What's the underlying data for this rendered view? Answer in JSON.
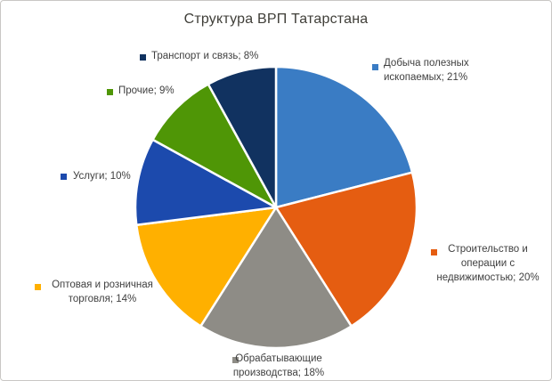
{
  "chart_data": {
    "type": "pie",
    "title": "Структура ВРП Татарстана",
    "legend_position": "none",
    "data_labels": "outside, legend key + category name + percent",
    "start_angle_deg": 0,
    "direction": "clockwise",
    "background": "#ffffff",
    "separator_color": "#ffffff",
    "slices": [
      {
        "label": "Добыча полезных ископаемых",
        "value": 21,
        "unit": "%",
        "color": "#3a7cc4",
        "display": "Добыча полезных\nископаемых; 21%"
      },
      {
        "label": "Строительство и операции с недвижимостью",
        "value": 20,
        "unit": "%",
        "color": "#e55d11",
        "display": "Строительство и\nоперации с\nнедвижимостью; 20%"
      },
      {
        "label": "Обрабатывающие производства",
        "value": 18,
        "unit": "%",
        "color": "#8e8c86",
        "display": "Обрабатывающие\nпроизводства; 18%"
      },
      {
        "label": "Оптовая и розничная торговля",
        "value": 14,
        "unit": "%",
        "color": "#ffb000",
        "display": "Оптовая и розничная\nторговля; 14%"
      },
      {
        "label": "Услуги",
        "value": 10,
        "unit": "%",
        "color": "#1c4aad",
        "display": "Услуги; 10%"
      },
      {
        "label": "Прочие",
        "value": 9,
        "unit": "%",
        "color": "#4f9606",
        "display": "Прочие; 9%"
      },
      {
        "label": "Транспорт и связь",
        "value": 8,
        "unit": "%",
        "color": "#113260",
        "display": "Транспорт и связь; 8%"
      }
    ]
  }
}
